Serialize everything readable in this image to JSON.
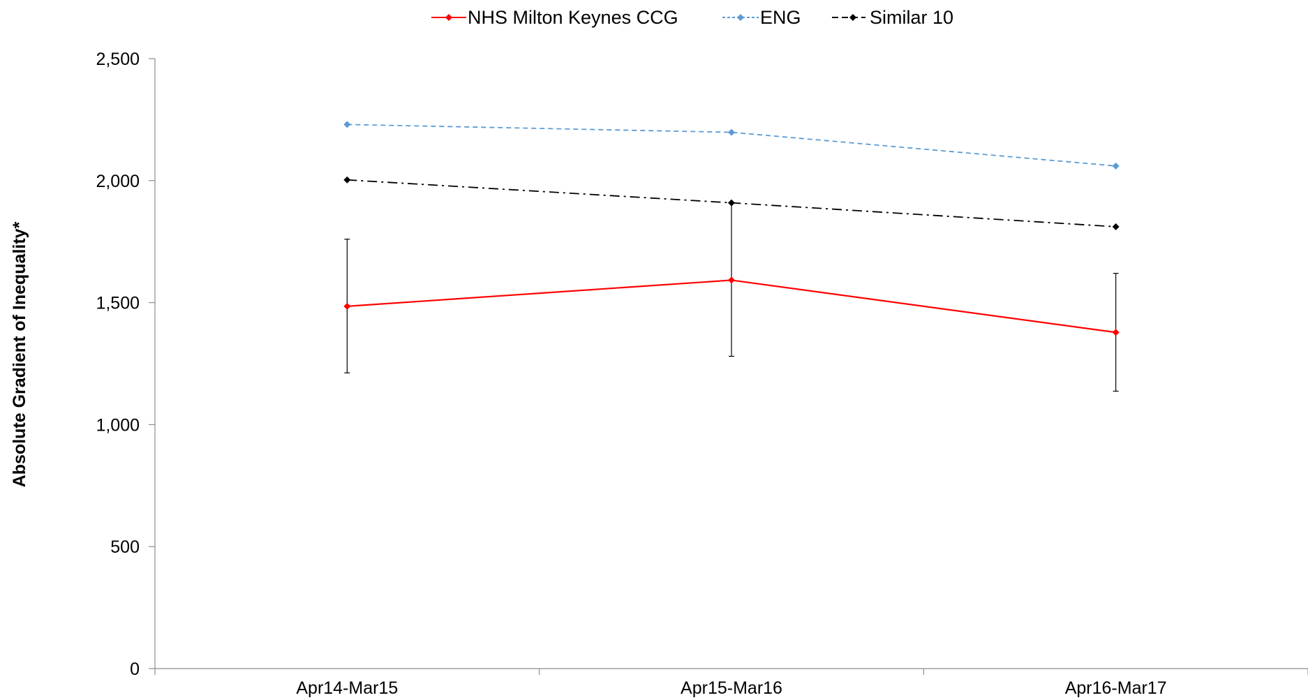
{
  "chart_data": {
    "type": "line",
    "title": "",
    "xlabel": "",
    "ylabel": "Absolute Gradient of Inequality*",
    "categories": [
      "Apr14-Mar15",
      "Apr15-Mar16",
      "Apr16-Mar17"
    ],
    "ylim": [
      0,
      2500
    ],
    "yticks": [
      0,
      500,
      1000,
      1500,
      2000,
      2500
    ],
    "ytick_labels": [
      "0",
      "500",
      "1,000",
      "1,500",
      "2,000",
      "2,500"
    ],
    "grid": false,
    "legend_position": "top-center",
    "series": [
      {
        "name": "NHS Milton Keynes CCG",
        "color": "#ff0000",
        "line_style": "solid",
        "marker": "diamond",
        "values": [
          1485,
          1592,
          1378
        ],
        "error_low": [
          1212,
          1280,
          1137
        ],
        "error_high": [
          1760,
          1908,
          1620
        ]
      },
      {
        "name": "ENG",
        "color": "#5b9bd5",
        "line_style": "dashed",
        "marker": "diamond",
        "values": [
          2230,
          2198,
          2060
        ]
      },
      {
        "name": "Similar 10",
        "color": "#000000",
        "line_style": "dash-dot",
        "marker": "diamond",
        "values": [
          2003,
          1909,
          1811
        ]
      }
    ]
  }
}
